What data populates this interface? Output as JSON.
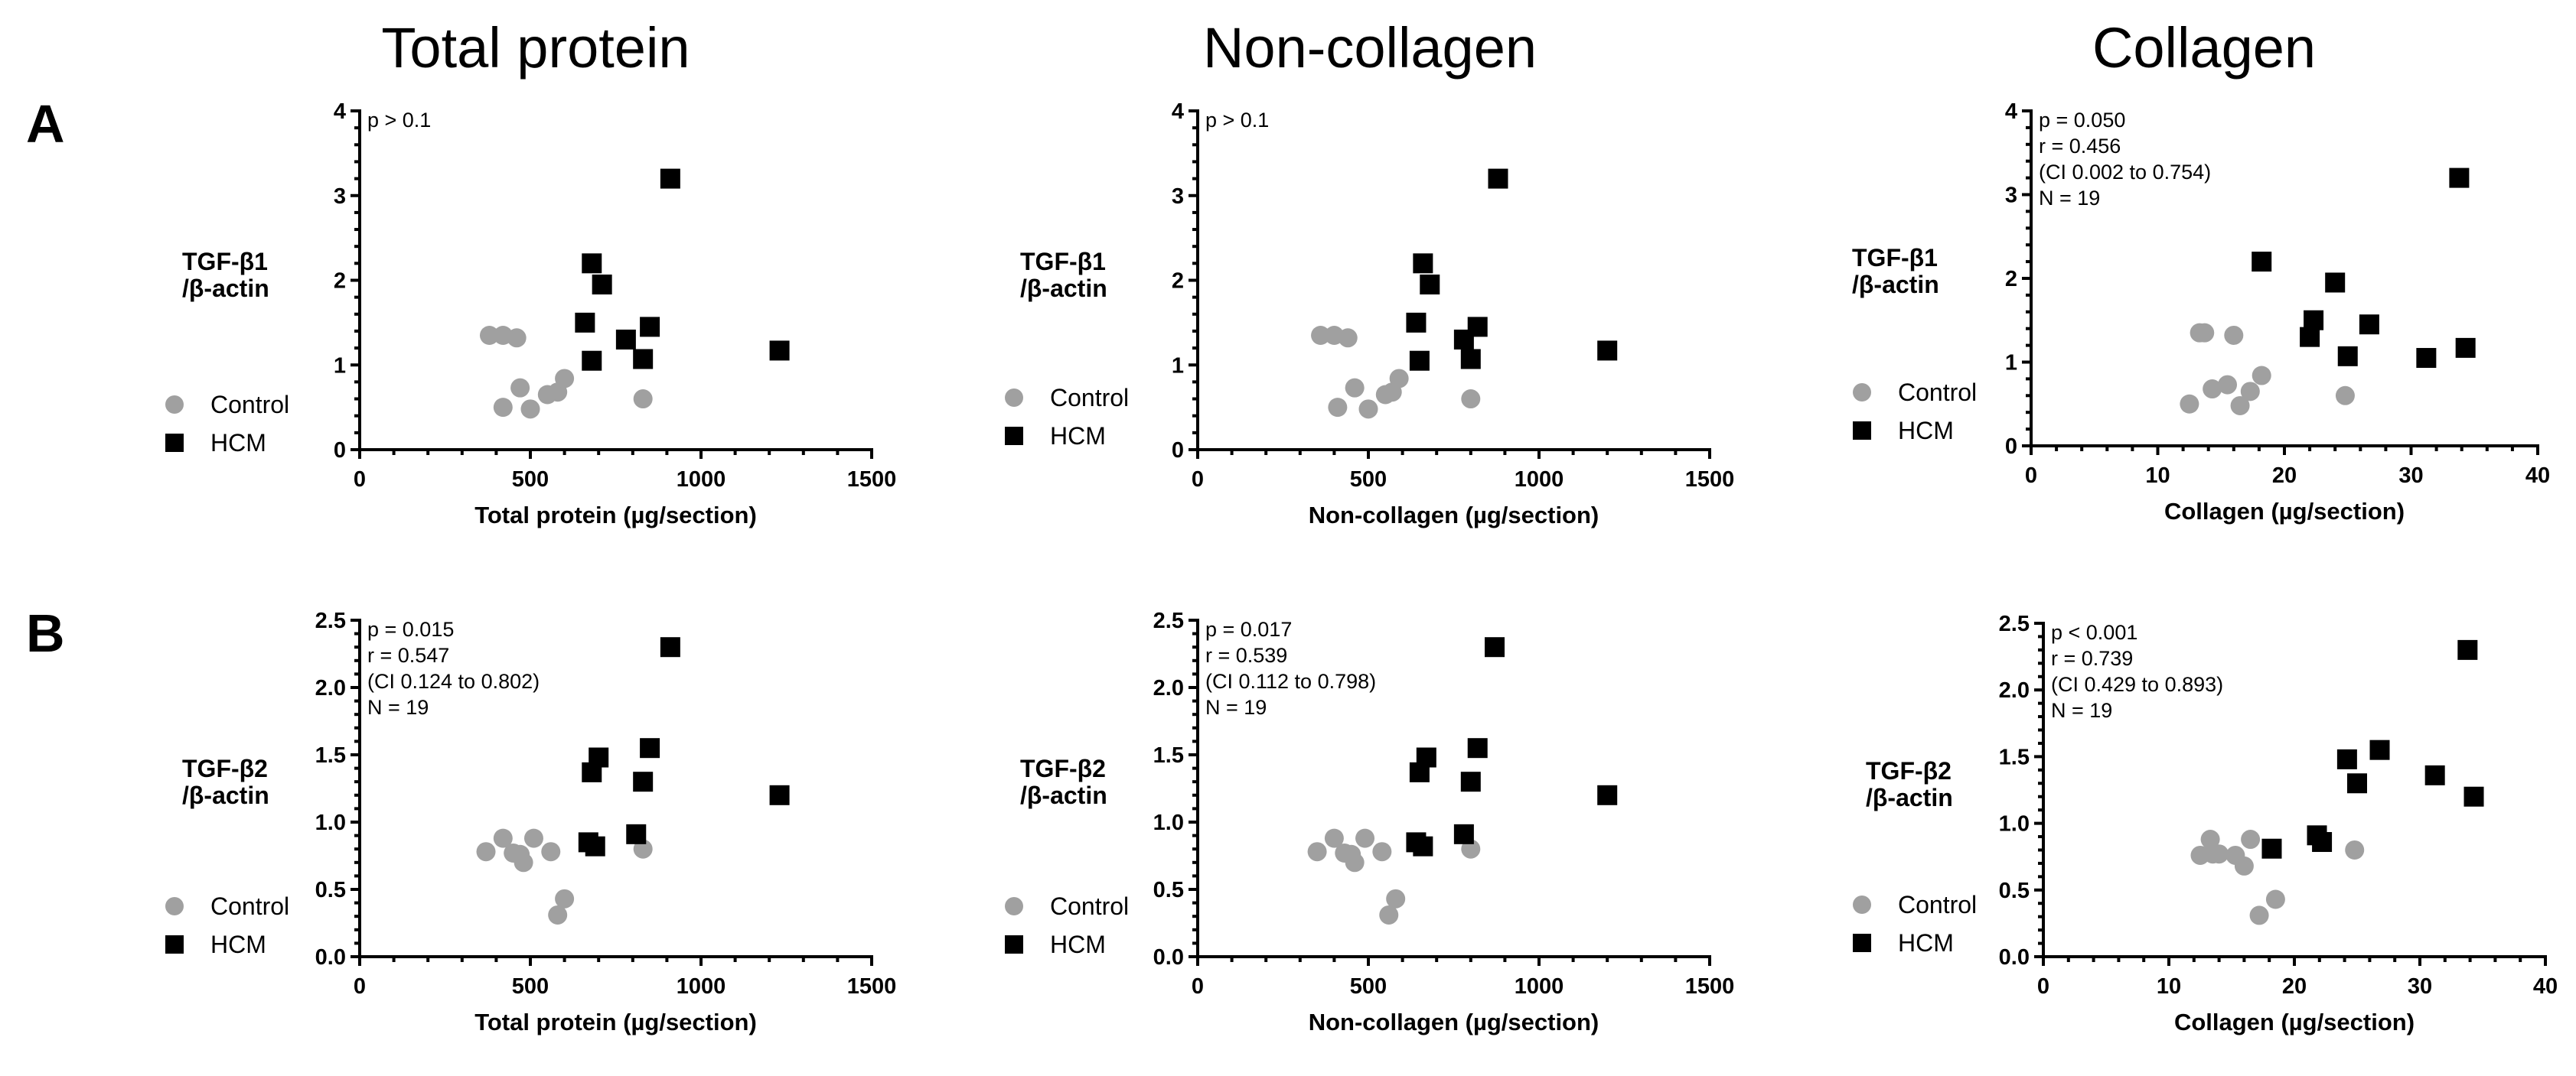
{
  "column_titles": [
    "Total protein",
    "Non-collagen",
    "Collagen"
  ],
  "row_labels": [
    "A",
    "B"
  ],
  "colors": {
    "control": "#a0a0a0",
    "hcm": "#000000"
  },
  "chart_data": [
    {
      "type": "scatter",
      "row": "A",
      "col": 0,
      "xlabel": "Total protein (µg/section)",
      "ylabel": [
        "TGF-β1",
        "/β-actin"
      ],
      "xlim": [
        0,
        1500
      ],
      "ylim": [
        0,
        4
      ],
      "xticks": [
        0,
        500,
        1000,
        1500
      ],
      "yticks": [
        0,
        1,
        2,
        3,
        4
      ],
      "ytick_labels": [
        "0",
        "1",
        "2",
        "3",
        "4"
      ],
      "stats": [
        "p > 0.1"
      ],
      "legend": [
        "Control",
        "HCM"
      ],
      "series": [
        {
          "name": "Control",
          "marker": "circle",
          "x": [
            380,
            420,
            460,
            420,
            470,
            500,
            550,
            580,
            600,
            830
          ],
          "y": [
            1.35,
            1.35,
            1.32,
            0.5,
            0.73,
            0.48,
            0.65,
            0.68,
            0.84,
            0.6
          ]
        },
        {
          "name": "HCM",
          "marker": "square",
          "x": [
            910,
            680,
            710,
            660,
            780,
            850,
            680,
            830,
            1230
          ],
          "y": [
            3.2,
            2.2,
            1.95,
            1.5,
            1.3,
            1.45,
            1.05,
            1.07,
            1.17
          ]
        }
      ]
    },
    {
      "type": "scatter",
      "row": "A",
      "col": 1,
      "xlabel": "Non-collagen (µg/section)",
      "ylabel": [
        "TGF-β1",
        "/β-actin"
      ],
      "xlim": [
        0,
        1500
      ],
      "ylim": [
        0,
        4
      ],
      "xticks": [
        0,
        500,
        1000,
        1500
      ],
      "yticks": [
        0,
        1,
        2,
        3,
        4
      ],
      "ytick_labels": [
        "0",
        "1",
        "2",
        "3",
        "4"
      ],
      "stats": [
        "p > 0.1"
      ],
      "legend": [
        "Control",
        "HCM"
      ],
      "series": [
        {
          "name": "Control",
          "marker": "circle",
          "x": [
            360,
            400,
            440,
            410,
            460,
            500,
            550,
            570,
            590,
            800
          ],
          "y": [
            1.35,
            1.35,
            1.32,
            0.5,
            0.73,
            0.48,
            0.65,
            0.68,
            0.84,
            0.6
          ]
        },
        {
          "name": "HCM",
          "marker": "square",
          "x": [
            880,
            660,
            680,
            640,
            780,
            820,
            650,
            800,
            1200
          ],
          "y": [
            3.2,
            2.2,
            1.95,
            1.5,
            1.3,
            1.45,
            1.05,
            1.07,
            1.17
          ]
        }
      ]
    },
    {
      "type": "scatter",
      "row": "A",
      "col": 2,
      "xlabel": "Collagen (µg/section)",
      "ylabel": [
        "TGF-β1",
        "/β-actin"
      ],
      "xlim": [
        0,
        40
      ],
      "ylim": [
        0,
        4
      ],
      "xticks": [
        0,
        10,
        20,
        30,
        40
      ],
      "yticks": [
        0,
        1,
        2,
        3,
        4
      ],
      "ytick_labels": [
        "0",
        "1",
        "2",
        "3",
        "4"
      ],
      "stats": [
        "p = 0.050",
        "r = 0.456",
        "(CI 0.002 to 0.754)",
        "N = 19"
      ],
      "legend": [
        "Control",
        "HCM"
      ],
      "series": [
        {
          "name": "Control",
          "marker": "circle",
          "x": [
            12.5,
            13.3,
            13.7,
            14.3,
            15.5,
            16.0,
            16.5,
            17.3,
            18.2,
            24.8
          ],
          "y": [
            0.5,
            1.35,
            1.35,
            0.68,
            0.73,
            1.32,
            0.48,
            0.65,
            0.84,
            0.6
          ]
        },
        {
          "name": "HCM",
          "marker": "square",
          "x": [
            18.2,
            22.0,
            22.3,
            24.0,
            25.0,
            26.7,
            31.2,
            33.8,
            34.3
          ],
          "y": [
            2.2,
            1.3,
            1.5,
            1.95,
            1.07,
            1.45,
            1.05,
            3.2,
            1.17
          ]
        }
      ]
    },
    {
      "type": "scatter",
      "row": "B",
      "col": 0,
      "xlabel": "Total protein (µg/section)",
      "ylabel": [
        "TGF-β2",
        "/β-actin"
      ],
      "xlim": [
        0,
        1500
      ],
      "ylim": [
        0,
        2.5
      ],
      "xticks": [
        0,
        500,
        1000,
        1500
      ],
      "yticks": [
        0,
        0.5,
        1,
        1.5,
        2,
        2.5
      ],
      "ytick_labels": [
        "0.0",
        "0.5",
        "1.0",
        "1.5",
        "2.0",
        "2.5"
      ],
      "stats": [
        "p = 0.015",
        "r = 0.547",
        "(CI 0.124 to 0.802)",
        "N = 19"
      ],
      "legend": [
        "Control",
        "HCM"
      ],
      "series": [
        {
          "name": "Control",
          "marker": "circle",
          "x": [
            370,
            420,
            450,
            470,
            480,
            510,
            560,
            580,
            600,
            830
          ],
          "y": [
            0.78,
            0.88,
            0.77,
            0.76,
            0.7,
            0.88,
            0.78,
            0.31,
            0.43,
            0.8
          ]
        },
        {
          "name": "HCM",
          "marker": "square",
          "x": [
            910,
            850,
            700,
            680,
            830,
            670,
            810,
            690,
            1230
          ],
          "y": [
            2.3,
            1.55,
            1.48,
            1.37,
            1.3,
            0.85,
            0.91,
            0.82,
            1.2
          ]
        }
      ]
    },
    {
      "type": "scatter",
      "row": "B",
      "col": 1,
      "xlabel": "Non-collagen (µg/section)",
      "ylabel": [
        "TGF-β2",
        "/β-actin"
      ],
      "xlim": [
        0,
        1500
      ],
      "ylim": [
        0,
        2.5
      ],
      "xticks": [
        0,
        500,
        1000,
        1500
      ],
      "yticks": [
        0,
        0.5,
        1,
        1.5,
        2,
        2.5
      ],
      "ytick_labels": [
        "0.0",
        "0.5",
        "1.0",
        "1.5",
        "2.0",
        "2.5"
      ],
      "stats": [
        "p = 0.017",
        "r = 0.539",
        "(CI 0.112 to 0.798)",
        "N = 19"
      ],
      "legend": [
        "Control",
        "HCM"
      ],
      "series": [
        {
          "name": "Control",
          "marker": "circle",
          "x": [
            350,
            400,
            430,
            450,
            460,
            490,
            540,
            560,
            580,
            800
          ],
          "y": [
            0.78,
            0.88,
            0.77,
            0.76,
            0.7,
            0.88,
            0.78,
            0.31,
            0.43,
            0.8
          ]
        },
        {
          "name": "HCM",
          "marker": "square",
          "x": [
            870,
            820,
            670,
            650,
            800,
            640,
            780,
            660,
            1200
          ],
          "y": [
            2.3,
            1.55,
            1.48,
            1.37,
            1.3,
            0.85,
            0.91,
            0.82,
            1.2
          ]
        }
      ]
    },
    {
      "type": "scatter",
      "row": "B",
      "col": 2,
      "xlabel": "Collagen (µg/section)",
      "ylabel": [
        "TGF-β2",
        "/β-actin"
      ],
      "xlim": [
        0,
        40
      ],
      "ylim": [
        0,
        2.5
      ],
      "xticks": [
        0,
        10,
        20,
        30,
        40
      ],
      "yticks": [
        0,
        0.5,
        1,
        1.5,
        2,
        2.5
      ],
      "ytick_labels": [
        "0.0",
        "0.5",
        "1.0",
        "1.5",
        "2.0",
        "2.5"
      ],
      "stats": [
        "p < 0.001",
        "r = 0.739",
        "(CI 0.429 to 0.893)",
        "N = 19"
      ],
      "legend": [
        "Control",
        "HCM"
      ],
      "series": [
        {
          "name": "Control",
          "marker": "circle",
          "x": [
            12.5,
            13.3,
            14.0,
            15.3,
            16.0,
            16.5,
            17.2,
            18.5,
            24.8,
            13.5
          ],
          "y": [
            0.76,
            0.88,
            0.77,
            0.76,
            0.68,
            0.88,
            0.31,
            0.43,
            0.8,
            0.77
          ]
        },
        {
          "name": "HCM",
          "marker": "square",
          "x": [
            18.2,
            21.8,
            22.2,
            24.2,
            25.0,
            26.8,
            31.2,
            33.8,
            34.3
          ],
          "y": [
            0.81,
            0.91,
            0.86,
            1.48,
            1.3,
            1.55,
            1.36,
            2.3,
            1.2
          ]
        }
      ]
    }
  ]
}
